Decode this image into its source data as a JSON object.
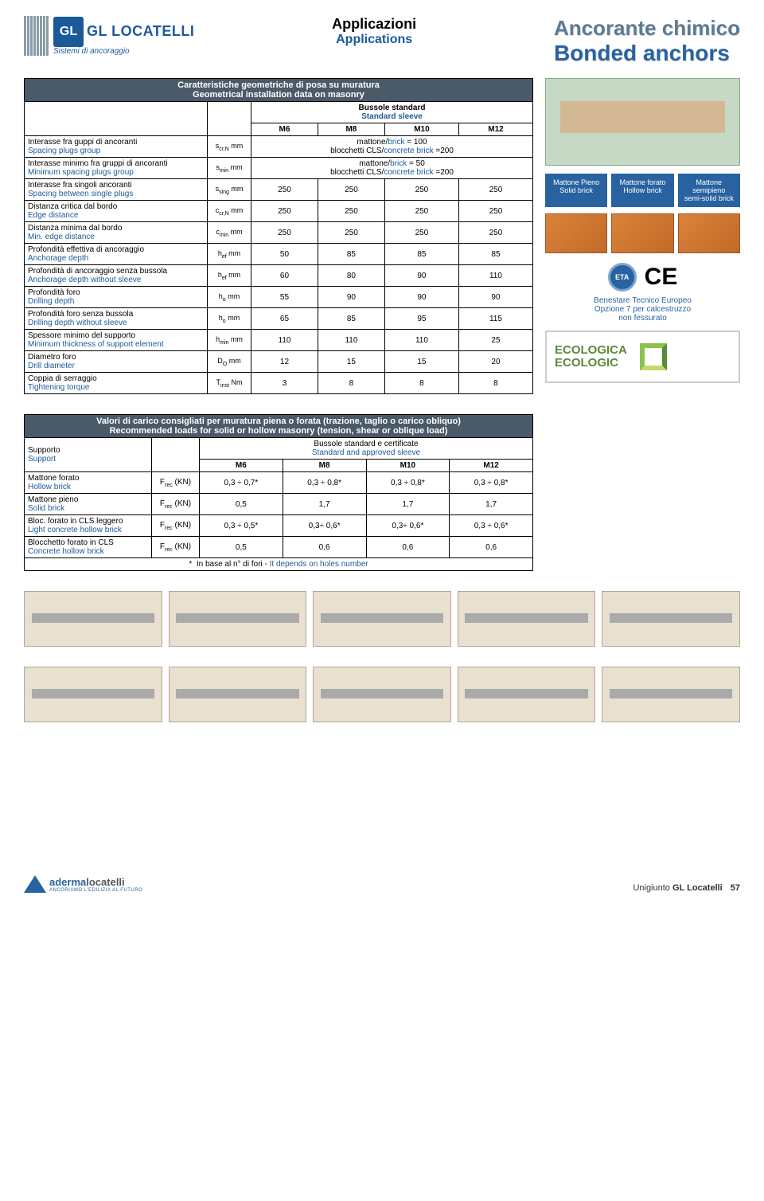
{
  "header": {
    "logo_main": "GL LOCATELLI",
    "logo_sub": "Sistemi di ancoraggio",
    "center_it": "Applicazioni",
    "center_en": "Applications",
    "right_line1": "Ancorante chimico",
    "right_line2": "Bonded anchors"
  },
  "table1": {
    "title_it": "Caratteristiche geometriche di posa su muratura",
    "title_en": "Geometrical installation data on masonry",
    "sleeve_it": "Bussole standard",
    "sleeve_en": "Standard sleeve",
    "cols": [
      "M6",
      "M8",
      "M10",
      "M12"
    ],
    "rows": [
      {
        "it": "Interasse fra guppi di ancoranti",
        "en": "Spacing plugs group",
        "unit": "s",
        "sub": "cr,N",
        "u": "mm",
        "merged": [
          "mattone/",
          "brick",
          " = 100",
          "blocchetti CLS/",
          "concrete brick",
          " =200"
        ]
      },
      {
        "it": "Interasse minimo fra gruppi di ancoranti",
        "en": "Minimum spacing plugs group",
        "unit": "s",
        "sub": "min",
        "u": "mm",
        "merged": [
          "mattone/",
          "brick",
          " = 50",
          "blocchetti CLS/",
          "concrete brick",
          " =200"
        ]
      },
      {
        "it": "Interasse fra singoli ancoranti",
        "en": "Spacing between single plugs",
        "unit": "s",
        "sub": "sing",
        "u": "mm",
        "vals": [
          "250",
          "250",
          "250",
          "250"
        ]
      },
      {
        "it": "Distanza critica dal bordo",
        "en": "Edge distance",
        "unit": "c",
        "sub": "cr,N",
        "u": "mm",
        "vals": [
          "250",
          "250",
          "250",
          "250"
        ]
      },
      {
        "it": "Distanza minima dal bordo",
        "en": "Min. edge distance",
        "unit": "c",
        "sub": "min",
        "u": "mm",
        "vals": [
          "250",
          "250",
          "250",
          "250"
        ]
      },
      {
        "it": "Profondità effettiva di ancoraggio",
        "en": "Anchorage depth",
        "unit": "h",
        "sub": "ef",
        "u": "mm",
        "vals": [
          "50",
          "85",
          "85",
          "85"
        ]
      },
      {
        "it": "Profondità di ancoraggio senza bussola",
        "en": "Anchorage depth without sleeve",
        "unit": "h",
        "sub": "ef",
        "u": "mm",
        "vals": [
          "60",
          "80",
          "90",
          "110"
        ]
      },
      {
        "it": "Profondità foro",
        "en": "Drilling depth",
        "unit": "h",
        "sub": "o",
        "u": "mm",
        "vals": [
          "55",
          "90",
          "90",
          "90"
        ]
      },
      {
        "it": "Profondità foro  senza bussola",
        "en": "Drilling depth without sleeve",
        "unit": "h",
        "sub": "o",
        "u": "mm",
        "vals": [
          "65",
          "85",
          "95",
          "115"
        ]
      },
      {
        "it": "Spessore minimo del supporto",
        "en": "Minimum thickness of support element",
        "unit": "h",
        "sub": "min",
        "u": "mm",
        "vals": [
          "110",
          "110",
          "110",
          "25"
        ]
      },
      {
        "it": "Diametro foro",
        "en": "Drill diameter",
        "unit": "D",
        "sub": "O",
        "u": "mm",
        "vals": [
          "12",
          "15",
          "15",
          "20"
        ]
      },
      {
        "it": "Coppia di serraggio",
        "en": "Tightening torque",
        "unit": "T",
        "sub": "inst",
        "u": "Nm",
        "vals": [
          "3",
          "8",
          "8",
          "8"
        ]
      }
    ]
  },
  "sidebar": {
    "bricks": [
      {
        "it": "Mattone Pieno",
        "en": "Solid brick"
      },
      {
        "it": "Mattone forato",
        "en": "Hollow brick"
      },
      {
        "it": "Mattone semipieno",
        "en": "semi-solid brick"
      }
    ],
    "eta": "ETA",
    "ce": "CE",
    "cert_line1": "Benestare Tecnico Europeo",
    "cert_line2": "Opzione 7 per calcestruzzo",
    "cert_line3": "non fessurato",
    "eco_line1": "ECOLOGICA",
    "eco_line2": "ECOLOGIC"
  },
  "table2": {
    "title_it": "Valori di carico consigliati per muratura piena o forata  (trazione, taglio o carico obliquo)",
    "title_en": "Recommended loads for solid or hollow masonry (tension, shear or oblique load)",
    "support_it": "Supporto",
    "support_en": "Support",
    "sleeve_it": "Bussole standard e certificate",
    "sleeve_en": "Standard and approved sleeve",
    "cols": [
      "M6",
      "M8",
      "M10",
      "M12"
    ],
    "rows": [
      {
        "it": "Mattone forato",
        "en": "Hollow brick",
        "unit": "Frec (KN)",
        "vals": [
          "0,3 ÷ 0,7*",
          "0,3 ÷ 0,8*",
          "0,3 ÷ 0,8*",
          "0,3 ÷ 0,8*"
        ]
      },
      {
        "it": "Mattone pieno",
        "en": "Solid brick",
        "unit": "Frec (KN)",
        "vals": [
          "0,5",
          "1,7",
          "1,7",
          "1,7"
        ]
      },
      {
        "it": "Bloc. forato in CLS leggero",
        "en": "Light concrete hollow brick",
        "unit": "Frec (KN)",
        "vals": [
          "0,3 ÷ 0,5*",
          "0,3÷ 0,6*",
          "0,3÷ 0,6*",
          "0,3 ÷ 0,6*"
        ]
      },
      {
        "it": "Blocchetto forato in CLS",
        "en": "Concrete hollow brick",
        "unit": "Frec (KN)",
        "vals": [
          "0,5",
          "0,6",
          "0,6",
          "0,6"
        ]
      }
    ],
    "footnote_star": "*",
    "footnote_it": "In base al n° di fori  -  ",
    "footnote_en": "It depends on holes number"
  },
  "footer": {
    "logo_a": "aderma",
    "logo_b": "locatelli",
    "logo_sub": "ANCORIAMO L'EDILIZIA AL FUTURO",
    "product": "Unigiunto",
    "brand": "GL Locatelli",
    "page": "57"
  }
}
